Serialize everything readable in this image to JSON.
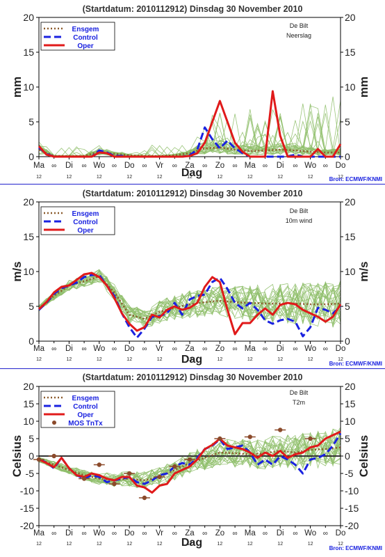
{
  "colors": {
    "background": "#ffffff",
    "ensemble": "#8fbf6a",
    "ensgem": "#8b5a2b",
    "control": "#1a22e0",
    "oper": "#e01a1a",
    "mos": "#8b4a2b",
    "frame": "#000000",
    "divider": "#2222cc",
    "label_blue": "#1a22e0",
    "axis_text": "#222222"
  },
  "panels": [
    {
      "title": "(Startdatum: 2010112912)   Dinsdag   30 November  2010",
      "station": "De Bilt",
      "variable": "Neerslag",
      "ylabel": "mm",
      "xlabel": "Dag",
      "source": "Bron: ECMWF/KNMI",
      "yticks": [
        "20",
        "15",
        "10",
        "5",
        "0"
      ]
    },
    {
      "title": "(Startdatum: 2010112912)   Dinsdag   30 November  2010",
      "station": "De Bilt",
      "variable": "10m wind",
      "ylabel": "m/s",
      "xlabel": "Dag",
      "source": "Bron: ECMWF/KNMI",
      "yticks": [
        "20",
        "15",
        "10",
        "5",
        "0"
      ]
    },
    {
      "title": "(Startdatum: 2010112912)   Dinsdag   30 November  2010",
      "station": "De Bilt",
      "variable": "T2m",
      "ylabel": "Celsius",
      "xlabel": "Dag",
      "source": "Bron: ECMWF/KNMI",
      "yticks": [
        "20",
        "15",
        "10",
        "5",
        "0",
        "-5",
        "-10",
        "-15",
        "-20"
      ]
    }
  ],
  "legend": {
    "ensgem": "Ensgem",
    "control": "Control",
    "oper": "Oper",
    "mos": "MOS TnTx"
  },
  "day_labels": [
    "Ma",
    "Di",
    "Wo",
    "Do",
    "Vr",
    "Za",
    "Zo",
    "Ma",
    "Di",
    "Wo",
    "Do"
  ],
  "noon_label": "12",
  "midnight_symbol": "∞",
  "chart_data": [
    {
      "type": "line",
      "title": "(Startdatum: 2010112912)   Dinsdag   30 November  2010",
      "ylabel": "mm",
      "xlabel": "Dag",
      "x_unit": "forecast hours",
      "ylim": [
        0,
        20
      ],
      "xlim": [
        0,
        240
      ],
      "grid": false,
      "series": [
        {
          "name": "Ensgem",
          "x": [
            0,
            12,
            24,
            36,
            48,
            60,
            72,
            84,
            96,
            108,
            120,
            132,
            144,
            156,
            168,
            180,
            192,
            204,
            216,
            228,
            240
          ],
          "values": [
            1.0,
            0.1,
            0.1,
            0.1,
            0.7,
            0.4,
            0.2,
            0.1,
            0.1,
            0.2,
            0.5,
            1.2,
            1.3,
            1.0,
            0.8,
            0.9,
            1.0,
            0.9,
            0.7,
            0.6,
            0.6
          ]
        },
        {
          "name": "Control",
          "x": [
            0,
            6,
            12,
            18,
            24,
            30,
            36,
            42,
            48,
            54,
            60,
            66,
            72,
            78,
            84,
            90,
            96,
            102,
            108,
            114,
            120,
            126,
            132,
            138,
            144,
            150,
            156,
            162,
            168,
            174,
            180,
            186,
            192,
            198,
            204,
            210,
            216,
            222,
            228,
            234,
            240
          ],
          "values": [
            1.3,
            0.4,
            0.0,
            0.0,
            0.0,
            0.0,
            0.0,
            0.0,
            0.9,
            0.6,
            0.1,
            0.1,
            0.0,
            0.0,
            0.0,
            0.0,
            0.0,
            0.0,
            0.0,
            0.0,
            0.2,
            1.0,
            4.2,
            2.5,
            1.2,
            2.3,
            1.2,
            0.5,
            0.0,
            0.0,
            0.0,
            0.0,
            0.0,
            0.0,
            0.3,
            0.0,
            0.0,
            0.0,
            0.0,
            0.0,
            0.0
          ]
        },
        {
          "name": "Oper",
          "x": [
            0,
            6,
            12,
            18,
            24,
            30,
            36,
            42,
            48,
            54,
            60,
            66,
            72,
            78,
            84,
            90,
            96,
            102,
            108,
            114,
            120,
            126,
            132,
            138,
            144,
            150,
            156,
            162,
            168,
            174,
            180,
            186,
            192,
            198,
            204,
            210,
            216,
            222,
            228,
            234,
            240
          ],
          "values": [
            1.5,
            0.3,
            0.0,
            0.0,
            0.0,
            0.0,
            0.0,
            0.0,
            0.6,
            0.5,
            0.0,
            0.0,
            0.0,
            0.0,
            0.0,
            0.0,
            0.0,
            0.0,
            0.0,
            0.0,
            0.1,
            0.5,
            2.0,
            5.0,
            8.0,
            5.0,
            2.0,
            0.7,
            0.0,
            0.0,
            0.0,
            9.4,
            3.0,
            0.0,
            0.0,
            0.0,
            0.0,
            1.1,
            0.0,
            0.0,
            1.8
          ]
        }
      ]
    },
    {
      "type": "line",
      "title": "(Startdatum: 2010112912)   Dinsdag   30 November  2010",
      "ylabel": "m/s",
      "xlabel": "Dag",
      "x_unit": "forecast hours",
      "ylim": [
        0,
        20
      ],
      "xlim": [
        0,
        240
      ],
      "grid": false,
      "series": [
        {
          "name": "Ensgem",
          "x": [
            0,
            12,
            24,
            36,
            48,
            60,
            72,
            84,
            96,
            108,
            120,
            132,
            144,
            156,
            168,
            180,
            192,
            204,
            216,
            228,
            240
          ],
          "values": [
            4.7,
            6.5,
            8.0,
            8.6,
            9.3,
            7.0,
            3.8,
            3.2,
            4.2,
            4.8,
            5.3,
            5.6,
            5.8,
            5.6,
            5.5,
            5.4,
            5.4,
            5.4,
            5.3,
            5.3,
            5.4
          ]
        },
        {
          "name": "Control",
          "x": [
            0,
            6,
            12,
            18,
            24,
            30,
            36,
            42,
            48,
            54,
            60,
            66,
            72,
            78,
            84,
            90,
            96,
            102,
            108,
            114,
            120,
            126,
            132,
            138,
            144,
            150,
            156,
            162,
            168,
            174,
            180,
            186,
            192,
            198,
            204,
            210,
            216,
            222,
            228,
            234,
            240
          ],
          "values": [
            4.5,
            5.5,
            6.8,
            7.6,
            8.0,
            8.4,
            9.2,
            9.5,
            9.5,
            8.0,
            6.5,
            4.0,
            2.0,
            0.5,
            1.8,
            3.5,
            3.6,
            4.0,
            5.5,
            3.8,
            6.0,
            6.5,
            6.7,
            8.5,
            9.1,
            7.5,
            5.5,
            4.7,
            5.5,
            4.5,
            3.0,
            2.5,
            3.0,
            3.2,
            2.8,
            0.7,
            2.0,
            4.8,
            4.5,
            4.0,
            5.0
          ]
        },
        {
          "name": "Oper",
          "x": [
            0,
            6,
            12,
            18,
            24,
            30,
            36,
            42,
            48,
            54,
            60,
            66,
            72,
            78,
            84,
            90,
            96,
            102,
            108,
            114,
            120,
            126,
            132,
            138,
            144,
            150,
            156,
            162,
            168,
            174,
            180,
            186,
            192,
            198,
            204,
            210,
            216,
            222,
            228,
            234,
            240
          ],
          "values": [
            4.6,
            5.6,
            7.0,
            7.8,
            8.0,
            8.8,
            9.6,
            9.8,
            9.2,
            8.0,
            6.2,
            4.0,
            2.5,
            1.5,
            2.0,
            3.8,
            3.4,
            4.5,
            5.0,
            4.5,
            4.8,
            5.5,
            7.8,
            9.2,
            8.5,
            4.5,
            1.0,
            2.6,
            2.6,
            3.8,
            4.7,
            3.8,
            5.2,
            5.5,
            5.3,
            4.5,
            4.0,
            3.5,
            2.8,
            3.5,
            5.3
          ]
        }
      ]
    },
    {
      "type": "line",
      "title": "(Startdatum: 2010112912)   Dinsdag   30 November  2010",
      "ylabel": "Celsius",
      "xlabel": "Dag",
      "x_unit": "forecast hours",
      "ylim": [
        -20,
        20
      ],
      "xlim": [
        0,
        240
      ],
      "grid": false,
      "series": [
        {
          "name": "Ensgem",
          "x": [
            0,
            12,
            24,
            36,
            48,
            60,
            72,
            84,
            96,
            108,
            120,
            132,
            144,
            156,
            168,
            180,
            192,
            204,
            216,
            228,
            240
          ],
          "values": [
            -1.0,
            -2.5,
            -4.0,
            -5.5,
            -6.5,
            -6.8,
            -6.5,
            -7.0,
            -6.0,
            -4.0,
            -2.0,
            -0.5,
            1.0,
            0.8,
            0.5,
            0.8,
            1.5,
            1.0,
            1.8,
            2.0,
            2.5
          ]
        },
        {
          "name": "Control",
          "x": [
            0,
            6,
            12,
            18,
            24,
            30,
            36,
            42,
            48,
            54,
            60,
            66,
            72,
            78,
            84,
            90,
            96,
            102,
            108,
            114,
            120,
            126,
            132,
            138,
            144,
            150,
            156,
            162,
            168,
            174,
            180,
            186,
            192,
            198,
            204,
            210,
            216,
            222,
            228,
            234,
            240
          ],
          "values": [
            -1.0,
            -1.8,
            -3.5,
            -0.5,
            -3.5,
            -5.5,
            -6.5,
            -5.5,
            -6.0,
            -7.5,
            -7.0,
            -6.5,
            -6.0,
            -7.5,
            -8.0,
            -7.0,
            -5.5,
            -5.0,
            -3.0,
            -2.0,
            -2.5,
            -0.5,
            2.0,
            3.0,
            4.8,
            2.0,
            2.5,
            3.0,
            1.0,
            -2.5,
            -1.0,
            -2.5,
            0.0,
            -1.0,
            -2.5,
            -5.0,
            -1.0,
            -0.5,
            0.5,
            3.0,
            6.5
          ]
        },
        {
          "name": "Oper",
          "x": [
            0,
            6,
            12,
            18,
            24,
            30,
            36,
            42,
            48,
            54,
            60,
            66,
            72,
            78,
            84,
            90,
            96,
            102,
            108,
            114,
            120,
            126,
            132,
            138,
            144,
            150,
            156,
            162,
            168,
            174,
            180,
            186,
            192,
            198,
            204,
            210,
            216,
            222,
            228,
            234,
            240
          ],
          "values": [
            -1.0,
            -2.0,
            -3.2,
            -0.5,
            -3.5,
            -5.5,
            -6.0,
            -5.0,
            -5.5,
            -6.5,
            -7.0,
            -6.0,
            -6.0,
            -8.5,
            -9.0,
            -10.5,
            -8.5,
            -8.0,
            -5.0,
            -4.0,
            -3.0,
            -1.0,
            2.0,
            3.2,
            5.0,
            3.0,
            2.5,
            2.0,
            1.0,
            -0.5,
            1.0,
            0.0,
            1.5,
            -0.5,
            0.5,
            1.0,
            2.5,
            3.0,
            5.0,
            6.0,
            7.0
          ]
        },
        {
          "name": "MOS TnTx",
          "x": [
            0,
            12,
            36,
            48,
            60,
            72,
            84,
            96,
            108,
            120,
            144,
            168,
            192,
            216
          ],
          "values": [
            -1.0,
            0.0,
            -6.5,
            -2.5,
            -8.0,
            -5.0,
            -12.0,
            -6.0,
            -3.0,
            -1.0,
            5.0,
            5.5,
            7.5,
            5.0
          ]
        }
      ]
    }
  ]
}
